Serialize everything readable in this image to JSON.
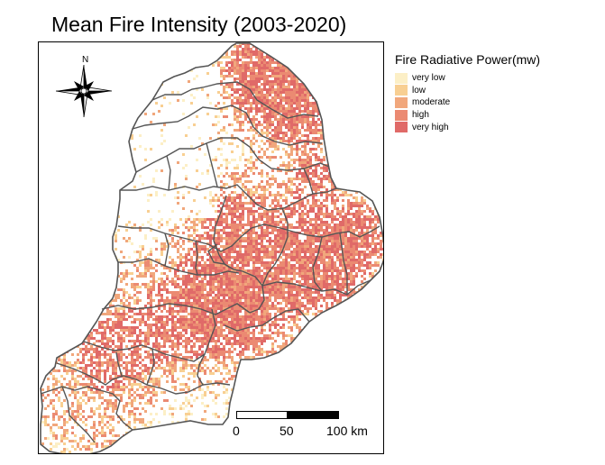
{
  "title": "Mean Fire Intensity (2003-2020)",
  "north_arrow": {
    "label": "N",
    "icon": "compass-rose-icon"
  },
  "scale_bar": {
    "labels": [
      "0",
      "50",
      "100 km"
    ]
  },
  "legend": {
    "title": "Fire Radiative Power(mw)",
    "items": [
      {
        "label": "very low",
        "color": "#fcefc6"
      },
      {
        "label": "low",
        "color": "#f8cf92"
      },
      {
        "label": "moderate",
        "color": "#f1a77c"
      },
      {
        "label": "high",
        "color": "#eb8a72"
      },
      {
        "label": "very high",
        "color": "#e06a68"
      }
    ]
  },
  "region": {
    "outline_color": "#555555"
  }
}
